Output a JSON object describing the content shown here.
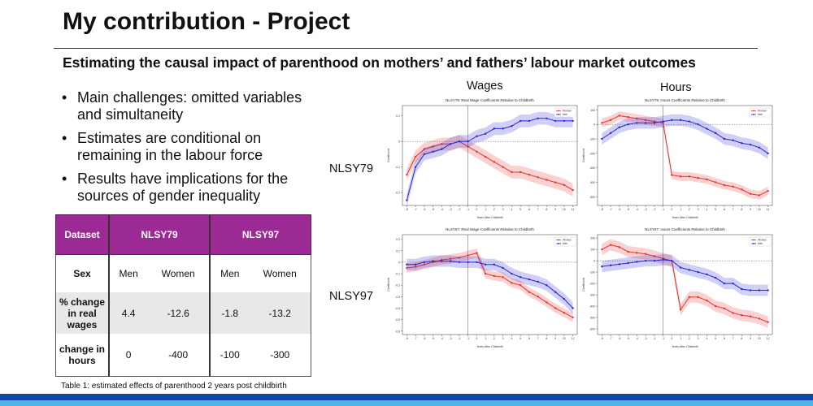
{
  "slide": {
    "title": "My contribution - Project",
    "subtitle": "Estimating the causal impact of parenthood on mothers’ and fathers’ labour market outcomes",
    "bullets": [
      "Main challenges: omitted variables and simultaneity",
      "Estimates are conditional on remaining in the labour force",
      "Results have implications for the sources of gender inequality"
    ],
    "bullet_glyph": "•",
    "column_labels": {
      "wages": "Wages",
      "hours": "Hours"
    },
    "row_labels": {
      "nlsy79": "NLSY79",
      "nlsy97": "NLSY97"
    },
    "caption": "Table 1: estimated effects of parenthood 2 years post childbirth"
  },
  "table": {
    "header": {
      "dataset": "Dataset",
      "group1": "NLSY79",
      "group2": "NLSY97"
    },
    "rows": [
      {
        "label": "Sex",
        "cells": [
          "Men",
          "Women",
          "Men",
          "Women"
        ]
      },
      {
        "label": "% change in real wages",
        "cells": [
          "4.4",
          "-12.6",
          "-1.8",
          "-13.2"
        ]
      },
      {
        "label": "change in hours",
        "cells": [
          "0",
          "-400",
          "-100",
          "-300"
        ]
      }
    ]
  },
  "colors": {
    "women": "#e8312f",
    "men": "#2727d6",
    "header_bg": "#9b2a94",
    "footer_dark": "#0b4aa2",
    "footer_light": "#4fb3e8"
  },
  "chart_data": [
    {
      "type": "line",
      "title": "NLSY79: Real Wage Coefficients Relative to Childbirth",
      "xlabel": "Years After Childbirth",
      "ylabel": "Coefficient",
      "x": [
        -8,
        -7,
        -6,
        -5,
        -4,
        -3,
        -2,
        -1,
        0,
        1,
        2,
        3,
        4,
        5,
        6,
        7,
        8,
        9,
        10,
        11
      ],
      "xlim": [
        -8.5,
        11.5
      ],
      "ylim": [
        -0.25,
        0.14
      ],
      "yticks": [
        0.1,
        0.0,
        -0.1,
        -0.2
      ],
      "legend": "top-right",
      "series": [
        {
          "name": "Women",
          "values": [
            -0.13,
            -0.06,
            -0.03,
            -0.02,
            -0.01,
            -0.01,
            0.0,
            -0.02,
            -0.04,
            -0.06,
            -0.08,
            -0.1,
            -0.12,
            -0.12,
            -0.13,
            -0.14,
            -0.15,
            -0.16,
            -0.17,
            -0.19
          ],
          "band": 0.025
        },
        {
          "name": "Men",
          "values": [
            -0.23,
            -0.1,
            -0.05,
            -0.04,
            -0.03,
            -0.01,
            0.0,
            0.0,
            0.02,
            0.03,
            0.05,
            0.05,
            0.06,
            0.08,
            0.08,
            0.09,
            0.09,
            0.08,
            0.08,
            0.08
          ],
          "band": 0.025
        }
      ]
    },
    {
      "type": "line",
      "title": "NLSY79: Hours Coefficients Relative to Childbirth",
      "xlabel": "Years After Childbirth",
      "ylabel": "Coefficient",
      "x": [
        -8,
        -7,
        -6,
        -5,
        -4,
        -3,
        -2,
        -1,
        0,
        1,
        2,
        3,
        4,
        5,
        6,
        7,
        8,
        9,
        10,
        11
      ],
      "xlim": [
        -8.5,
        11.5
      ],
      "ylim": [
        -560,
        130
      ],
      "yticks": [
        100,
        0,
        -100,
        -200,
        -300,
        -400,
        -500
      ],
      "legend": "top-right",
      "series": [
        {
          "name": "Women",
          "values": [
            10,
            30,
            60,
            50,
            40,
            30,
            20,
            10,
            -350,
            -360,
            -360,
            -370,
            -380,
            -400,
            -420,
            -430,
            -450,
            -480,
            -490,
            -460
          ],
          "band": 30
        },
        {
          "name": "Men",
          "values": [
            -100,
            -60,
            -20,
            0,
            10,
            10,
            10,
            20,
            30,
            30,
            20,
            0,
            -30,
            -60,
            -100,
            -110,
            -130,
            -140,
            -160,
            -200
          ],
          "band": 40
        }
      ]
    },
    {
      "type": "line",
      "title": "NLSY97: Real Wage Coefficients Relative to Childbirth",
      "xlabel": "Years After Childbirth",
      "ylabel": "Coefficient",
      "x": [
        -8,
        -7,
        -6,
        -5,
        -4,
        -3,
        -2,
        -1,
        0,
        1,
        2,
        3,
        4,
        5,
        6,
        7,
        8,
        9,
        10,
        11
      ],
      "xlim": [
        -8.5,
        11.5
      ],
      "ylim": [
        -0.63,
        0.24
      ],
      "yticks": [
        0.2,
        0.1,
        0.0,
        -0.1,
        -0.2,
        -0.3,
        -0.4,
        -0.5,
        -0.6
      ],
      "legend": "top-right",
      "series": [
        {
          "name": "Women",
          "values": [
            -0.05,
            -0.04,
            -0.02,
            0.0,
            0.02,
            0.03,
            0.04,
            0.06,
            0.08,
            -0.1,
            -0.12,
            -0.13,
            -0.18,
            -0.2,
            -0.26,
            -0.3,
            -0.35,
            -0.4,
            -0.44,
            -0.48
          ],
          "band": 0.04
        },
        {
          "name": "Men",
          "values": [
            -0.02,
            -0.02,
            0.0,
            0.01,
            0.01,
            0.01,
            0.0,
            0.0,
            0.0,
            -0.02,
            -0.02,
            -0.05,
            -0.1,
            -0.13,
            -0.15,
            -0.17,
            -0.2,
            -0.26,
            -0.32,
            -0.4
          ],
          "band": 0.05
        }
      ]
    },
    {
      "type": "line",
      "title": "NLSY97: Hours Coefficients Relative to Childbirth",
      "xlabel": "Years After Childbirth",
      "ylabel": "Coefficient",
      "x": [
        -8,
        -7,
        -6,
        -5,
        -4,
        -3,
        -2,
        -1,
        0,
        1,
        2,
        3,
        4,
        5,
        6,
        7,
        8,
        9,
        10,
        11
      ],
      "xlim": [
        -8.5,
        11.5
      ],
      "ylim": [
        -650,
        230
      ],
      "yticks": [
        200,
        100,
        0,
        -100,
        -200,
        -300,
        -400,
        -500,
        -600
      ],
      "legend": "top-right",
      "series": [
        {
          "name": "Women",
          "values": [
            100,
            140,
            120,
            80,
            70,
            60,
            40,
            20,
            0,
            -430,
            -320,
            -320,
            -350,
            -400,
            -420,
            -460,
            -480,
            -490,
            -510,
            -540
          ],
          "band": 50
        },
        {
          "name": "Men",
          "values": [
            -50,
            -40,
            -30,
            -20,
            -10,
            0,
            0,
            10,
            0,
            -60,
            -80,
            -100,
            -120,
            -150,
            -200,
            -200,
            -250,
            -260,
            -260,
            -260
          ],
          "band": 50
        }
      ]
    }
  ]
}
